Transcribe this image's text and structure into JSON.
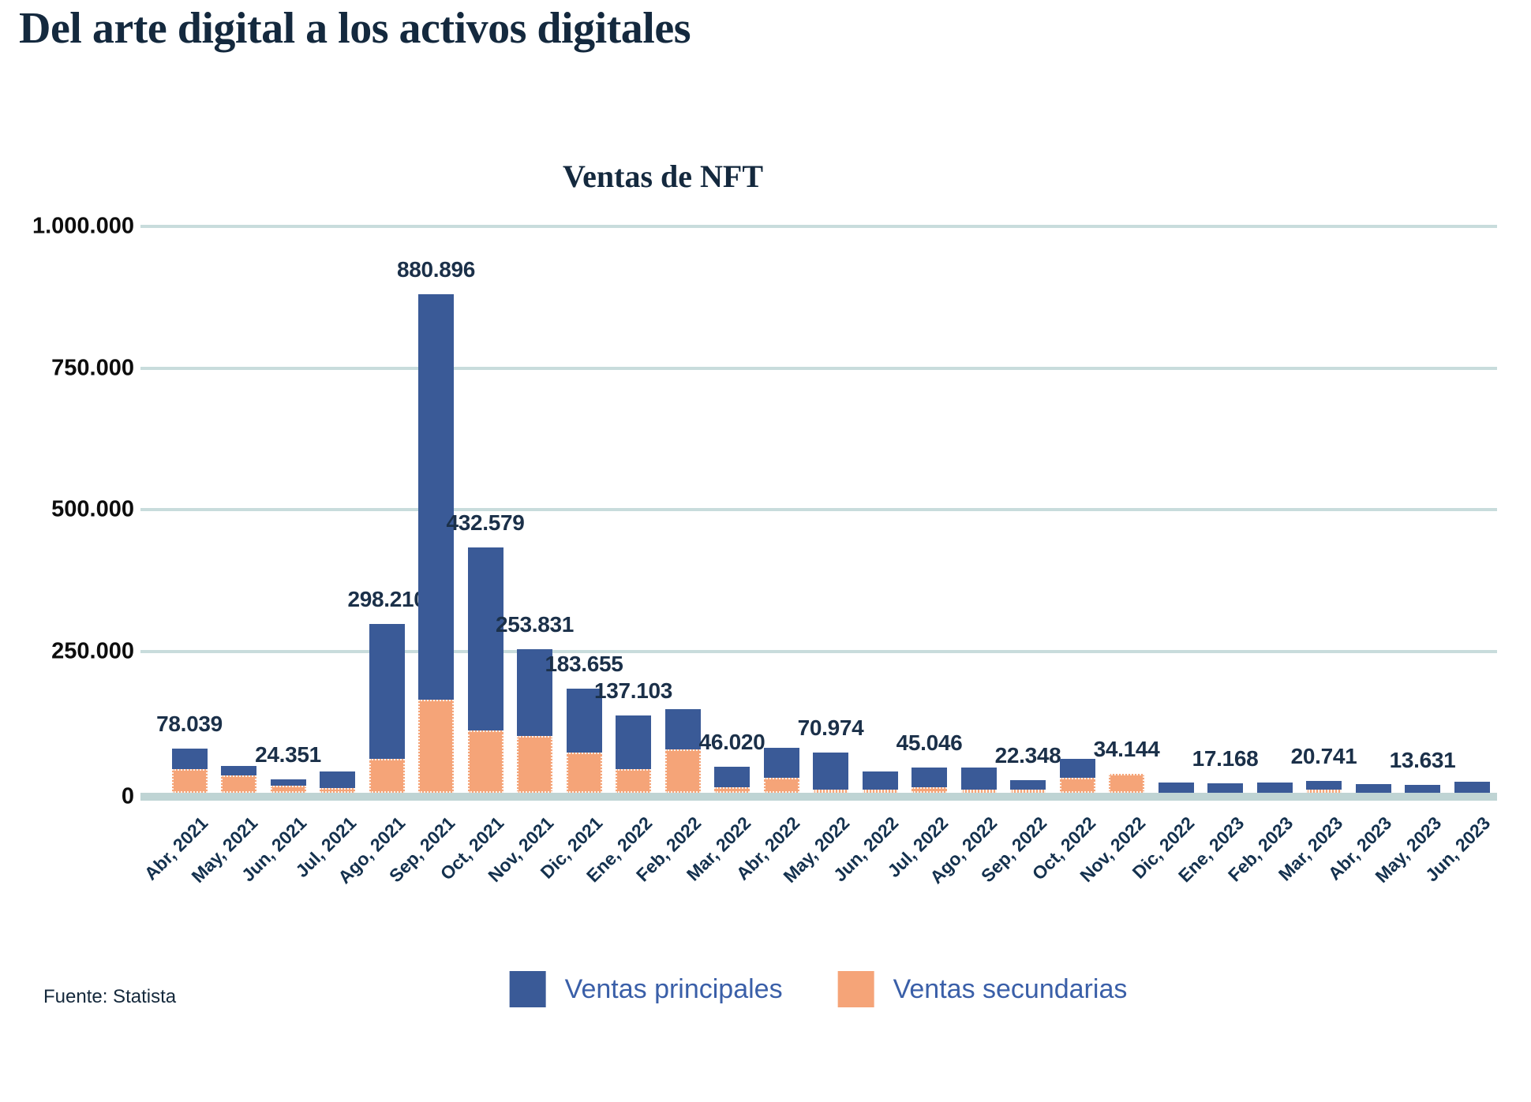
{
  "page": {
    "title": "Del arte digital a los activos digitales",
    "source": "Fuente: Statista"
  },
  "chart_data": {
    "type": "bar",
    "stacked": true,
    "title": "Ventas de NFT",
    "xlabel": "",
    "ylabel": "",
    "ylim": [
      0,
      1000000
    ],
    "grid": true,
    "legend_position": "bottom",
    "categories": [
      "Abr, 2021",
      "May, 2021",
      "Jun, 2021",
      "Jul, 2021",
      "Ago, 2021",
      "Sep, 2021",
      "Oct, 2021",
      "Nov, 2021",
      "Dic, 2021",
      "Ene, 2022",
      "Feb, 2022",
      "Mar, 2022",
      "Abr, 2022",
      "May, 2022",
      "Jun, 2022",
      "Jul, 2022",
      "Ago, 2022",
      "Sep, 2022",
      "Oct, 2022",
      "Nov, 2022",
      "Dic, 2022",
      "Ene, 2023",
      "Feb, 2023",
      "Mar, 2023",
      "Abr, 2023",
      "May, 2023",
      "Jun, 2023"
    ],
    "series": [
      {
        "name": "Ventas principales",
        "color": "#3A5A97",
        "values": [
          36039,
          17000,
          11351,
          30000,
          238210,
          715896,
          322579,
          153831,
          112655,
          95103,
          72000,
          36020,
          53000,
          66974,
          36000,
          35046,
          38000,
          21348,
          34000,
          0,
          18000,
          17168,
          18000,
          18741,
          16000,
          13631,
          19000
        ]
      },
      {
        "name": "Ventas secundarias",
        "color": "#F5A478",
        "values": [
          42000,
          31000,
          13000,
          8000,
          60000,
          165000,
          110000,
          100000,
          71000,
          42000,
          76000,
          10000,
          26000,
          4000,
          2000,
          10000,
          6000,
          1000,
          26000,
          34144,
          0,
          0,
          0,
          2000,
          0,
          0,
          0
        ]
      }
    ],
    "totals": [
      78039,
      48000,
      24351,
      38000,
      298210,
      880896,
      432579,
      253831,
      183655,
      137103,
      148000,
      46020,
      79000,
      70974,
      38000,
      45046,
      44000,
      22348,
      60000,
      34144,
      18000,
      17168,
      18000,
      20741,
      16000,
      13631,
      19000
    ],
    "bar_labels": [
      "78.039",
      "",
      "24.351",
      "",
      "298.210",
      "880.896",
      "432.579",
      "253.831",
      "183.655",
      "137.103",
      "",
      "46.020",
      "",
      "70.974",
      "",
      "45.046",
      "",
      "22.348",
      "",
      "34.144",
      "",
      "17.168",
      "",
      "20.741",
      "",
      "13.631",
      ""
    ],
    "yticks": [
      {
        "label": "1.000.000",
        "value": 1000000
      },
      {
        "label": "750.000",
        "value": 750000
      },
      {
        "label": "500.000",
        "value": 500000
      },
      {
        "label": "250.000",
        "value": 250000
      },
      {
        "label": "0",
        "value": 0
      }
    ],
    "colors": {
      "grid": "#C8DCDC",
      "baseline": "#BFD4D4",
      "bar_value_label": "#1B3049",
      "axis_text": "#14314E",
      "legend_text": "#3A5FA8",
      "title_text": "#14293E"
    }
  }
}
